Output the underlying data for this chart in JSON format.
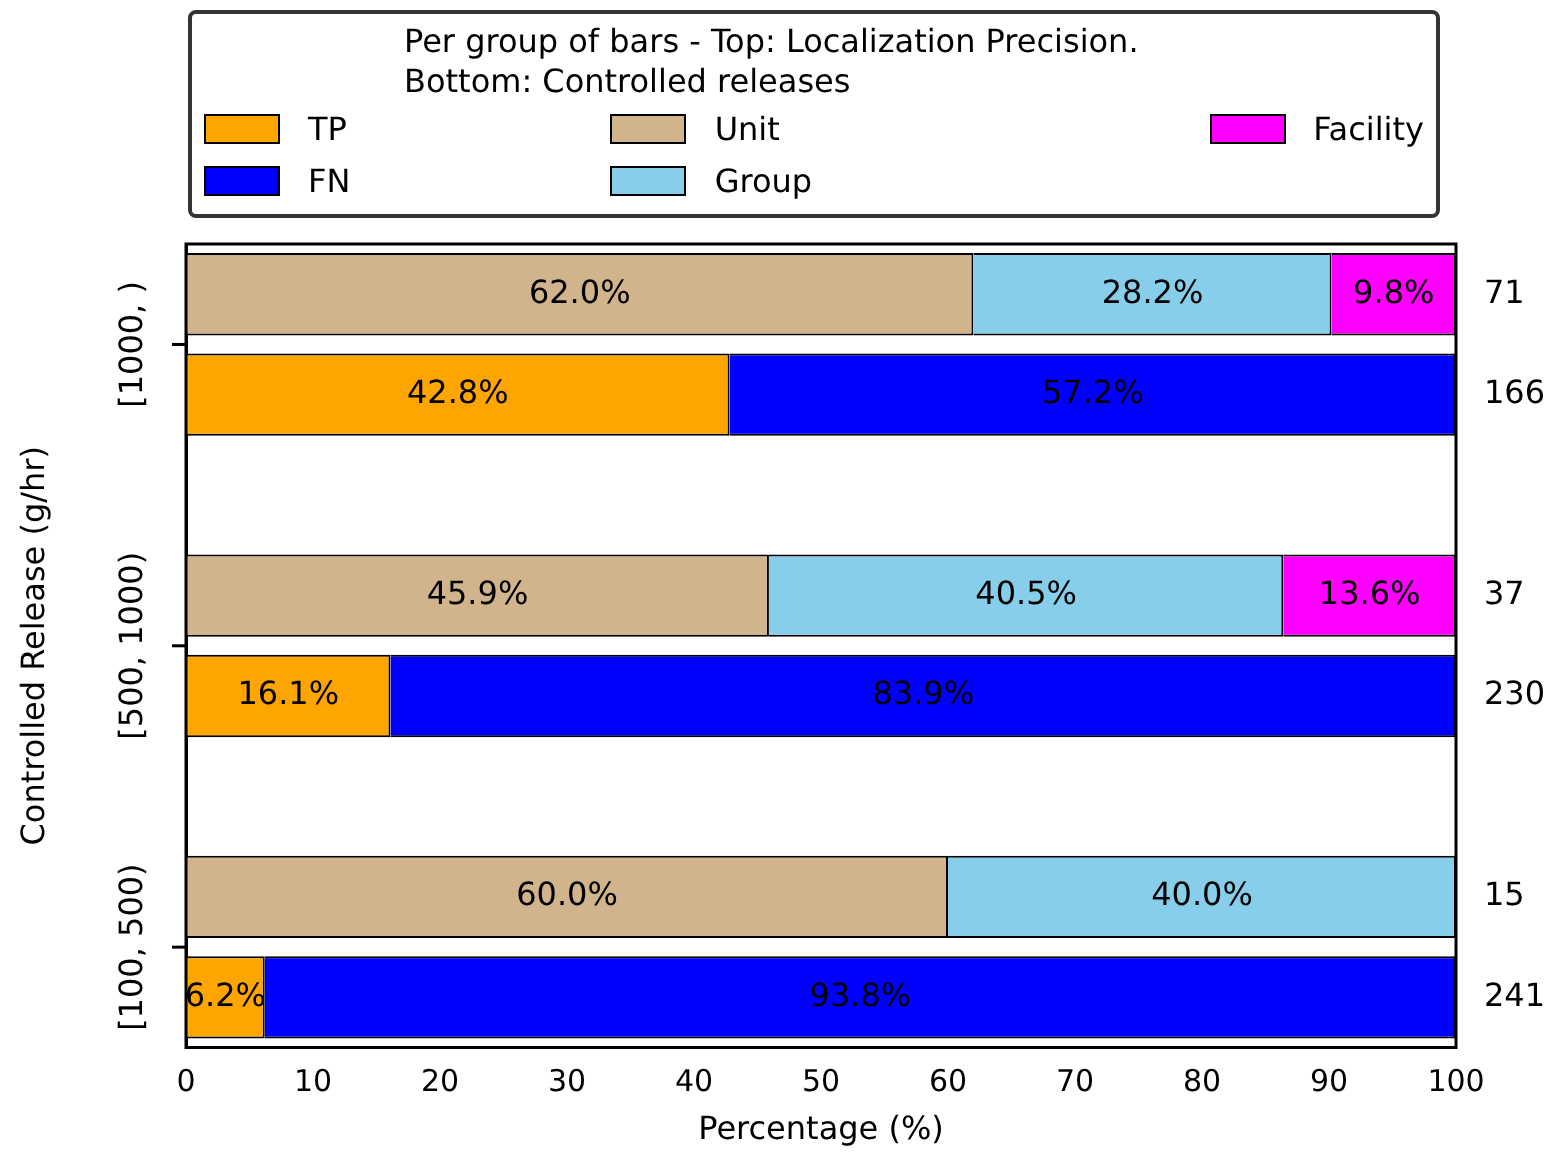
{
  "chart_data": {
    "type": "bar",
    "orientation": "horizontal",
    "stacked": true,
    "xlabel": "Percentage (%)",
    "ylabel": "Controlled Release (g/hr)",
    "legend": "top",
    "legend_title": "Per group of bars - Top: Localization Precision.\nBottom: Controlled releases",
    "xlim": [
      0,
      100
    ],
    "xticks": [
      0,
      10,
      20,
      30,
      40,
      50,
      60,
      70,
      80,
      90,
      100
    ],
    "categories": [
      "[1000, )",
      null,
      null,
      "[500, 1000)",
      null,
      null,
      "[100, 500)",
      null
    ],
    "series": [
      {
        "name": "TP",
        "color": "#ffa500",
        "values": [
          null,
          42.8,
          null,
          null,
          16.1,
          null,
          null,
          6.2
        ],
        "value_labels": [
          null,
          "42.8%",
          null,
          null,
          "16.1%",
          null,
          null,
          "6.2%"
        ]
      },
      {
        "name": "FN",
        "color": "#0000ff",
        "values": [
          null,
          57.2,
          null,
          null,
          83.9,
          null,
          null,
          93.8
        ],
        "value_labels": [
          null,
          "57.2%",
          null,
          null,
          "83.9%",
          null,
          null,
          "93.8%"
        ]
      },
      {
        "name": "Unit",
        "color": "#d2b48c",
        "values": [
          62.0,
          null,
          null,
          45.9,
          null,
          null,
          60.0,
          null
        ],
        "value_labels": [
          "62.0%",
          null,
          null,
          "45.9%",
          null,
          null,
          "60.0%",
          null
        ]
      },
      {
        "name": "Group",
        "color": "#87ceeb",
        "values": [
          28.2,
          null,
          null,
          40.5,
          null,
          null,
          40.0,
          null
        ],
        "value_labels": [
          "28.2%",
          null,
          null,
          "40.5%",
          null,
          null,
          "40.0%",
          null
        ]
      },
      {
        "name": "Facility",
        "color": "#ff00ff",
        "values": [
          9.8,
          null,
          null,
          13.6,
          null,
          null,
          null,
          null
        ],
        "value_labels": [
          "9.8%",
          null,
          null,
          "13.6%",
          null,
          null,
          null,
          null
        ]
      }
    ],
    "annotations": [
      "71",
      "166",
      "37",
      "230",
      "15",
      "241"
    ]
  }
}
